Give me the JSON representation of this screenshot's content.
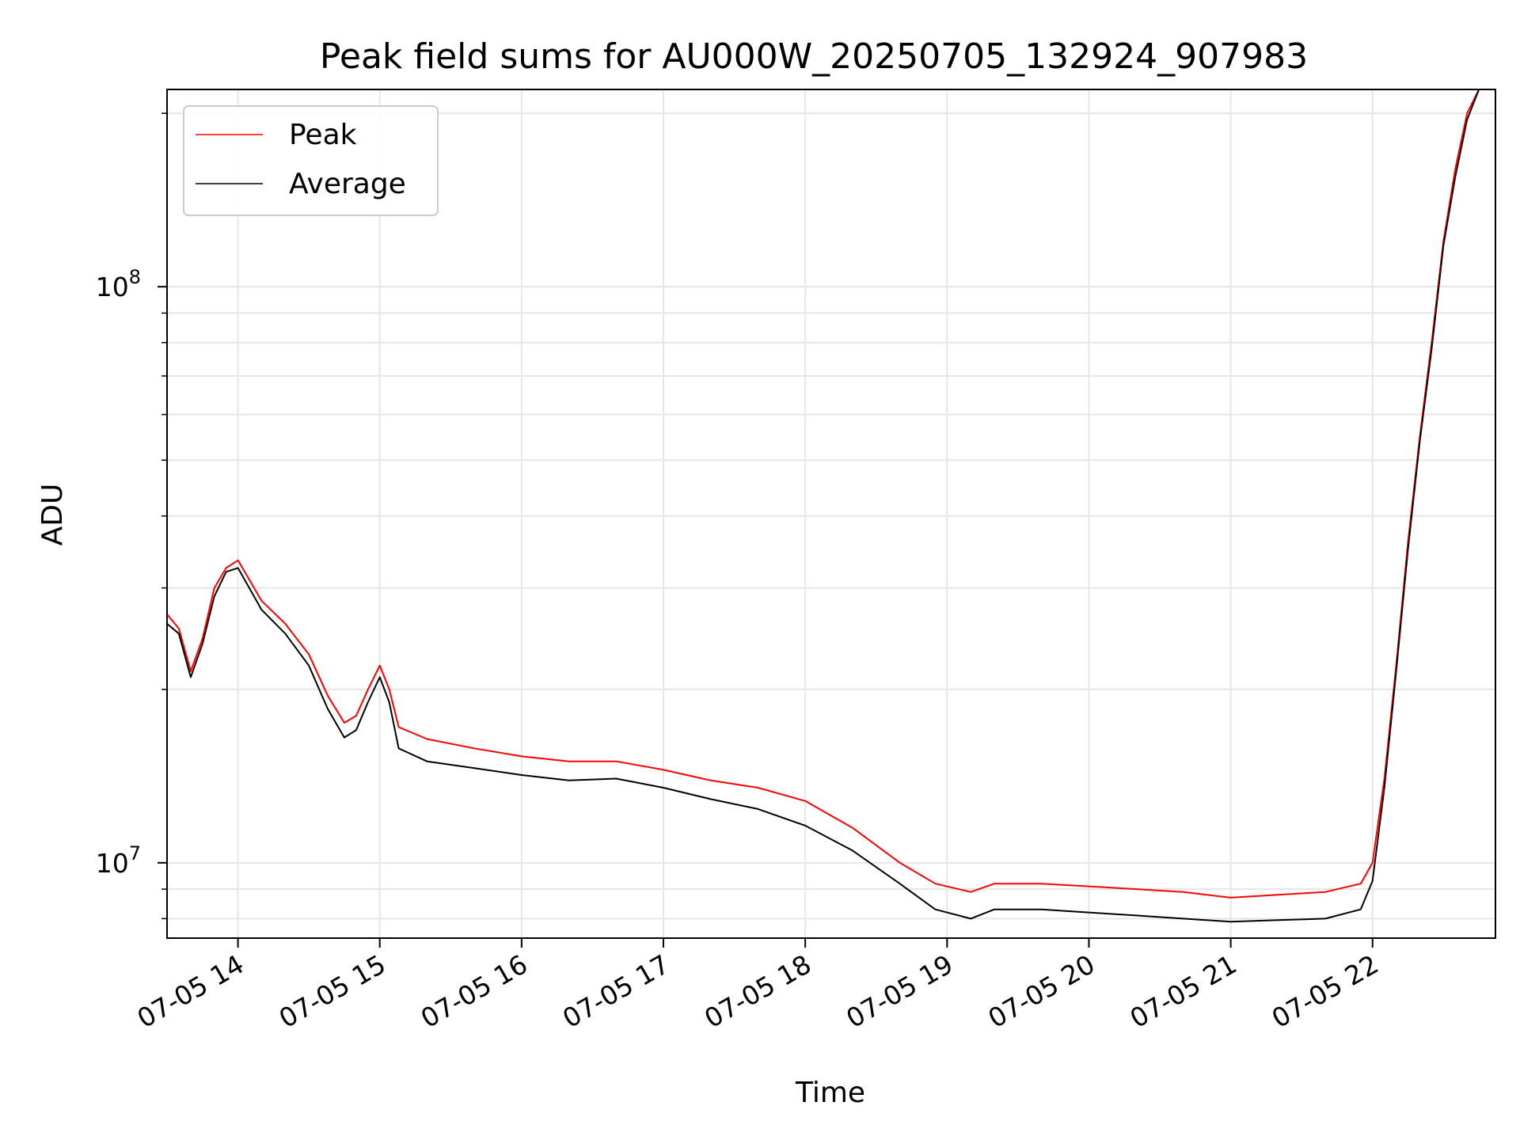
{
  "chart_data": {
    "type": "line",
    "title": "Peak field sums for AU000W_20250705_132924_907983",
    "xlabel": "Time",
    "ylabel": "ADU",
    "yscale": "log",
    "xlim": [
      "07-05 13:30",
      "07-05 22:52"
    ],
    "ylim": [
      7400000,
      220000000
    ],
    "grid": true,
    "legend_position": "upper-left",
    "x_tick_labels": [
      "07-05 14",
      "07-05 15",
      "07-05 16",
      "07-05 17",
      "07-05 18",
      "07-05 19",
      "07-05 20",
      "07-05 21",
      "07-05 22"
    ],
    "x_tick_times": [
      "07-05 14:00",
      "07-05 15:00",
      "07-05 16:00",
      "07-05 17:00",
      "07-05 18:00",
      "07-05 19:00",
      "07-05 20:00",
      "07-05 21:00",
      "07-05 22:00"
    ],
    "y_tick_labels": [
      {
        "value": 10000000,
        "base": "10",
        "exp": "7"
      },
      {
        "value": 100000000,
        "base": "10",
        "exp": "8"
      }
    ],
    "series": [
      {
        "name": "Peak",
        "color": "#ff0000",
        "x": [
          "07-05 13:30",
          "07-05 13:35",
          "07-05 13:40",
          "07-05 13:45",
          "07-05 13:50",
          "07-05 13:55",
          "07-05 14:00",
          "07-05 14:10",
          "07-05 14:20",
          "07-05 14:30",
          "07-05 14:38",
          "07-05 14:45",
          "07-05 14:50",
          "07-05 14:55",
          "07-05 15:00",
          "07-05 15:04",
          "07-05 15:08",
          "07-05 15:20",
          "07-05 15:40",
          "07-05 16:00",
          "07-05 16:20",
          "07-05 16:40",
          "07-05 17:00",
          "07-05 17:20",
          "07-05 17:40",
          "07-05 18:00",
          "07-05 18:20",
          "07-05 18:40",
          "07-05 18:55",
          "07-05 19:10",
          "07-05 19:20",
          "07-05 19:40",
          "07-05 20:00",
          "07-05 20:20",
          "07-05 20:40",
          "07-05 21:00",
          "07-05 21:20",
          "07-05 21:40",
          "07-05 21:55",
          "07-05 22:00",
          "07-05 22:05",
          "07-05 22:10",
          "07-05 22:15",
          "07-05 22:20",
          "07-05 22:25",
          "07-05 22:30",
          "07-05 22:35",
          "07-05 22:40",
          "07-05 22:45",
          "07-05 22:52"
        ],
        "y": [
          27000000,
          25500000,
          21500000,
          24500000,
          30000000,
          32500000,
          33500000,
          28500000,
          26000000,
          23000000,
          19500000,
          17500000,
          18000000,
          20000000,
          22000000,
          20000000,
          17200000,
          16400000,
          15800000,
          15300000,
          15000000,
          15000000,
          14500000,
          13900000,
          13500000,
          12800000,
          11500000,
          10000000,
          9200000,
          8900000,
          9200000,
          9200000,
          9100000,
          9000000,
          8900000,
          8700000,
          8800000,
          8900000,
          9200000,
          10000000,
          14000000,
          22000000,
          36000000,
          55000000,
          80000000,
          120000000,
          160000000,
          200000000,
          220000000,
          220000000
        ]
      },
      {
        "name": "Average",
        "color": "#000000",
        "x": [
          "07-05 13:30",
          "07-05 13:35",
          "07-05 13:40",
          "07-05 13:45",
          "07-05 13:50",
          "07-05 13:55",
          "07-05 14:00",
          "07-05 14:10",
          "07-05 14:20",
          "07-05 14:30",
          "07-05 14:38",
          "07-05 14:45",
          "07-05 14:50",
          "07-05 14:55",
          "07-05 15:00",
          "07-05 15:04",
          "07-05 15:08",
          "07-05 15:20",
          "07-05 15:40",
          "07-05 16:00",
          "07-05 16:20",
          "07-05 16:40",
          "07-05 17:00",
          "07-05 17:20",
          "07-05 17:40",
          "07-05 18:00",
          "07-05 18:20",
          "07-05 18:40",
          "07-05 18:55",
          "07-05 19:10",
          "07-05 19:20",
          "07-05 19:40",
          "07-05 20:00",
          "07-05 20:20",
          "07-05 20:40",
          "07-05 21:00",
          "07-05 21:20",
          "07-05 21:40",
          "07-05 21:55",
          "07-05 22:00",
          "07-05 22:05",
          "07-05 22:10",
          "07-05 22:15",
          "07-05 22:20",
          "07-05 22:25",
          "07-05 22:30",
          "07-05 22:35",
          "07-05 22:40",
          "07-05 22:45",
          "07-05 22:52"
        ],
        "y": [
          26000000,
          25000000,
          21000000,
          24000000,
          29000000,
          32000000,
          32500000,
          27500000,
          25000000,
          22000000,
          18500000,
          16500000,
          17000000,
          19000000,
          21000000,
          19000000,
          15800000,
          15000000,
          14600000,
          14200000,
          13900000,
          14000000,
          13500000,
          12900000,
          12400000,
          11600000,
          10500000,
          9200000,
          8300000,
          8000000,
          8300000,
          8300000,
          8200000,
          8100000,
          8000000,
          7900000,
          7950000,
          8000000,
          8300000,
          9300000,
          13500000,
          21500000,
          35000000,
          54000000,
          78000000,
          118000000,
          155000000,
          195000000,
          220000000,
          220000000
        ]
      }
    ]
  }
}
